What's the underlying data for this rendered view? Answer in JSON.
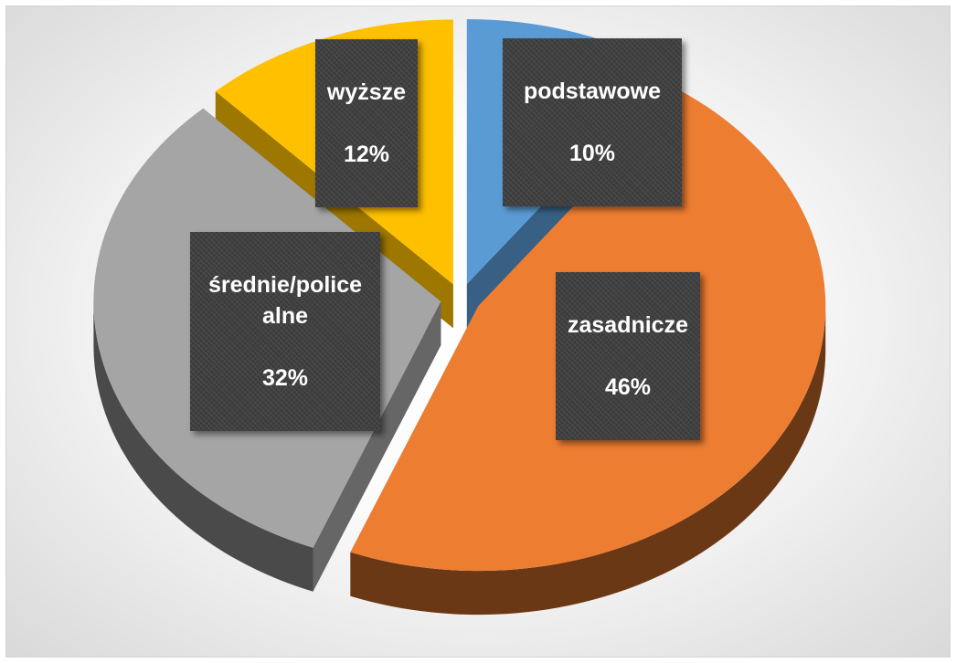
{
  "chart_data": {
    "type": "pie",
    "categories": [
      "podstawowe",
      "zasadnicze",
      "średnie/police\nalne",
      "wyższe"
    ],
    "values": [
      10,
      46,
      32,
      12
    ],
    "labels": [
      "10%",
      "46%",
      "32%",
      "12%"
    ],
    "colors": [
      "#5b9bd5",
      "#ed7d31",
      "#a5a5a5",
      "#ffc000"
    ],
    "exploded": true,
    "style": "3d"
  }
}
